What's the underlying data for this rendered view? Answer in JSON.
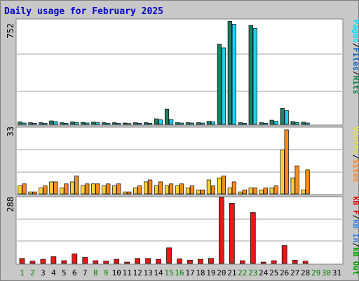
{
  "chart_data": {
    "type": "bar",
    "title": "Daily usage for February 2025",
    "categories": [
      "1",
      "2",
      "3",
      "4",
      "5",
      "6",
      "7",
      "8",
      "9",
      "10",
      "11",
      "12",
      "13",
      "14",
      "15",
      "16",
      "17",
      "18",
      "19",
      "20",
      "21",
      "22",
      "23",
      "24",
      "25",
      "26",
      "27",
      "28",
      "29",
      "30",
      "31"
    ],
    "weekend_days": [
      1,
      2,
      8,
      9,
      15,
      16,
      22,
      23,
      29,
      30
    ],
    "panels": [
      {
        "id": "hits",
        "max_label": "752",
        "ymax": 752,
        "legend": [
          {
            "text": "Pages",
            "color": "#00e0ff"
          },
          {
            "text": "/",
            "color": "#000000"
          },
          {
            "text": "Files",
            "color": "#0060c0"
          },
          {
            "text": "/",
            "color": "#000000"
          },
          {
            "text": "Hits",
            "color": "#008040"
          }
        ],
        "series": [
          {
            "name": "Hits",
            "color": "#1e8060",
            "values": [
              18,
              12,
              12,
              25,
              12,
              18,
              14,
              16,
              12,
              12,
              10,
              12,
              12,
              40,
              110,
              12,
              12,
              12,
              22,
              575,
              740,
              12,
              710,
              12,
              30,
              115,
              20,
              16,
              0,
              0,
              0
            ]
          },
          {
            "name": "Pages",
            "color": "#19d0f5",
            "values": [
              10,
              8,
              8,
              20,
              8,
              12,
              10,
              12,
              8,
              8,
              6,
              8,
              8,
              32,
              35,
              10,
              10,
              10,
              18,
              550,
              720,
              8,
              690,
              8,
              22,
              100,
              14,
              10,
              0,
              0,
              0
            ]
          }
        ]
      },
      {
        "id": "visits",
        "max_label": "33",
        "ymax": 33,
        "legend": [
          {
            "text": "Visits",
            "color": "#e0e040"
          },
          {
            "text": "/",
            "color": "#000000"
          },
          {
            "text": "Sites",
            "color": "#ff8020"
          }
        ],
        "series": [
          {
            "name": "Visits",
            "color": "#ffd23a",
            "values": [
              4,
              1,
              3,
              6,
              3,
              6,
              4,
              5,
              4,
              4,
              1,
              3,
              6,
              4,
              4,
              4,
              3,
              2,
              7,
              8,
              3,
              1,
              3,
              2,
              3,
              22,
              8,
              2,
              0,
              0,
              0
            ]
          },
          {
            "name": "Sites",
            "color": "#ff8c1a",
            "values": [
              5,
              1,
              4,
              6,
              5,
              9,
              5,
              5,
              5,
              5,
              1,
              4,
              7,
              6,
              5,
              5,
              4,
              2,
              4,
              9,
              6,
              2,
              3,
              3,
              4,
              32,
              14,
              12,
              0,
              0,
              0
            ]
          }
        ]
      },
      {
        "id": "kbf",
        "max_label": "288",
        "ymax": 288,
        "legend": [
          {
            "text": "kB F",
            "color": "#e00000"
          },
          {
            "text": "/",
            "color": "#000000"
          },
          {
            "text": "kB In",
            "color": "#3080e0"
          },
          {
            "text": "/",
            "color": "#000000"
          },
          {
            "text": "kB Out",
            "color": "#00a000"
          }
        ],
        "series": [
          {
            "name": "kB F",
            "color": "#e81818",
            "values": [
              22,
              10,
              18,
              30,
              12,
              42,
              26,
              12,
              10,
              18,
              6,
              22,
              22,
              18,
              68,
              20,
              14,
              18,
              22,
              288,
              262,
              12,
              222,
              6,
              12,
              78,
              14,
              10,
              0,
              0,
              0
            ]
          }
        ]
      }
    ]
  }
}
